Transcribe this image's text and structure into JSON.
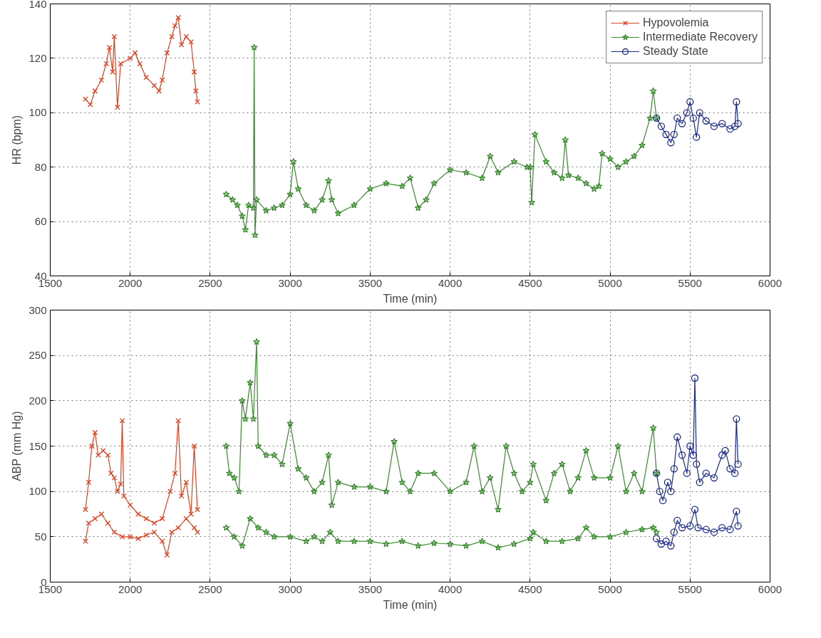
{
  "chart_data": [
    {
      "type": "line",
      "xlabel": "Time (min)",
      "ylabel": "HR (bpm)",
      "xlim": [
        1500,
        6000
      ],
      "xticks": [
        1500,
        2000,
        2500,
        3000,
        3500,
        4000,
        4500,
        5000,
        5500,
        6000
      ],
      "ylim": [
        40,
        140
      ],
      "yticks": [
        40,
        60,
        80,
        100,
        120,
        140
      ],
      "grid": true,
      "legend": "top right",
      "series": [
        {
          "name": "Hypovolemia",
          "color": "#e0401e",
          "marker": "cross",
          "x": [
            1720,
            1750,
            1780,
            1820,
            1850,
            1870,
            1890,
            1900,
            1920,
            1940,
            2000,
            2030,
            2060,
            2100,
            2150,
            2180,
            2200,
            2230,
            2260,
            2280,
            2300,
            2320,
            2350,
            2380,
            2400,
            2410,
            2420
          ],
          "values": [
            105,
            103,
            108,
            112,
            118,
            124,
            115,
            128,
            102,
            118,
            120,
            122,
            118,
            113,
            110,
            108,
            112,
            122,
            128,
            132,
            135,
            125,
            128,
            126,
            115,
            108,
            104
          ]
        },
        {
          "name": "Intermediate Recovery",
          "color": "#3a8a2e",
          "marker": "star",
          "x": [
            2600,
            2640,
            2670,
            2700,
            2720,
            2740,
            2770,
            2775,
            2780,
            2790,
            2850,
            2900,
            2950,
            3000,
            3020,
            3050,
            3100,
            3150,
            3200,
            3240,
            3260,
            3300,
            3400,
            3500,
            3600,
            3700,
            3750,
            3800,
            3850,
            3900,
            4000,
            4100,
            4200,
            4250,
            4300,
            4400,
            4480,
            4500,
            4510,
            4530,
            4600,
            4650,
            4700,
            4720,
            4740,
            4800,
            4850,
            4900,
            4930,
            4950,
            5000,
            5050,
            5100,
            5150,
            5200,
            5250,
            5270,
            5290
          ],
          "values": [
            70,
            68,
            66,
            62,
            57,
            66,
            65,
            124,
            55,
            68,
            64,
            65,
            66,
            70,
            82,
            72,
            66,
            64,
            68,
            75,
            68,
            63,
            66,
            72,
            74,
            73,
            76,
            65,
            68,
            74,
            79,
            78,
            76,
            84,
            78,
            82,
            80,
            80,
            67,
            92,
            82,
            78,
            76,
            90,
            77,
            76,
            74,
            72,
            73,
            85,
            83,
            80,
            82,
            84,
            88,
            98,
            108,
            98
          ]
        },
        {
          "name": "Steady State",
          "color": "#1a2a8c",
          "marker": "circle",
          "x": [
            5290,
            5320,
            5350,
            5380,
            5400,
            5420,
            5450,
            5480,
            5500,
            5520,
            5540,
            5560,
            5600,
            5650,
            5700,
            5750,
            5780,
            5790,
            5800
          ],
          "values": [
            98,
            95,
            92,
            89,
            92,
            98,
            96,
            100,
            104,
            98,
            91,
            100,
            97,
            95,
            96,
            94,
            95,
            104,
            96
          ]
        }
      ]
    },
    {
      "type": "line",
      "xlabel": "Time (min)",
      "ylabel": "ABP (mm Hg)",
      "xlim": [
        1500,
        6000
      ],
      "xticks": [
        1500,
        2000,
        2500,
        3000,
        3500,
        4000,
        4500,
        5000,
        5500,
        6000
      ],
      "ylim": [
        0,
        300
      ],
      "yticks": [
        0,
        50,
        100,
        150,
        200,
        250,
        300
      ],
      "grid": true,
      "series": [
        {
          "color": "#e0401e",
          "marker": "cross",
          "x": [
            1720,
            1740,
            1760,
            1780,
            1800,
            1830,
            1860,
            1880,
            1900,
            1920,
            1940,
            1950,
            1960,
            2000,
            2050,
            2100,
            2150,
            2200,
            2250,
            2280,
            2300,
            2320,
            2350,
            2380,
            2400,
            2420
          ],
          "values": [
            80,
            110,
            150,
            165,
            140,
            145,
            140,
            120,
            115,
            100,
            108,
            178,
            95,
            85,
            75,
            70,
            65,
            70,
            100,
            120,
            178,
            95,
            110,
            75,
            150,
            80
          ]
        },
        {
          "color": "#e0401e",
          "marker": "cross",
          "x": [
            1720,
            1740,
            1780,
            1820,
            1860,
            1900,
            1950,
            2000,
            2050,
            2100,
            2150,
            2200,
            2230,
            2260,
            2300,
            2350,
            2400,
            2420
          ],
          "values": [
            45,
            65,
            70,
            75,
            65,
            55,
            50,
            50,
            48,
            52,
            55,
            45,
            30,
            55,
            60,
            70,
            60,
            55
          ]
        },
        {
          "color": "#3a8a2e",
          "marker": "star",
          "x": [
            2600,
            2620,
            2650,
            2680,
            2700,
            2720,
            2750,
            2770,
            2790,
            2800,
            2850,
            2900,
            2950,
            3000,
            3050,
            3100,
            3150,
            3200,
            3240,
            3260,
            3300,
            3400,
            3500,
            3600,
            3650,
            3700,
            3750,
            3800,
            3900,
            4000,
            4100,
            4150,
            4200,
            4250,
            4300,
            4350,
            4400,
            4450,
            4500,
            4520,
            4600,
            4650,
            4700,
            4750,
            4800,
            4850,
            4900,
            5000,
            5050,
            5100,
            5150,
            5200,
            5270,
            5290
          ],
          "values": [
            150,
            120,
            115,
            100,
            200,
            180,
            220,
            180,
            265,
            150,
            140,
            140,
            130,
            175,
            125,
            115,
            100,
            110,
            140,
            85,
            110,
            105,
            105,
            100,
            155,
            110,
            100,
            120,
            120,
            100,
            110,
            150,
            100,
            115,
            80,
            150,
            120,
            100,
            110,
            130,
            90,
            120,
            130,
            100,
            115,
            145,
            115,
            115,
            150,
            100,
            120,
            100,
            170,
            120
          ]
        },
        {
          "color": "#3a8a2e",
          "marker": "star",
          "x": [
            2600,
            2650,
            2700,
            2750,
            2800,
            2850,
            2900,
            3000,
            3100,
            3150,
            3200,
            3250,
            3300,
            3400,
            3500,
            3600,
            3700,
            3800,
            3900,
            4000,
            4100,
            4200,
            4300,
            4400,
            4500,
            4520,
            4600,
            4700,
            4800,
            4850,
            4900,
            5000,
            5100,
            5200,
            5270,
            5290
          ],
          "values": [
            60,
            50,
            40,
            70,
            60,
            55,
            50,
            50,
            45,
            50,
            45,
            55,
            45,
            45,
            45,
            42,
            45,
            40,
            43,
            42,
            40,
            45,
            38,
            42,
            48,
            55,
            45,
            45,
            48,
            60,
            50,
            50,
            55,
            58,
            60,
            55
          ]
        },
        {
          "color": "#1a2a8c",
          "marker": "circle",
          "x": [
            5290,
            5310,
            5330,
            5360,
            5380,
            5400,
            5420,
            5450,
            5480,
            5500,
            5520,
            5530,
            5540,
            5560,
            5600,
            5650,
            5700,
            5720,
            5750,
            5780,
            5790,
            5800
          ],
          "values": [
            120,
            100,
            90,
            110,
            100,
            125,
            160,
            140,
            120,
            150,
            140,
            225,
            130,
            110,
            120,
            115,
            140,
            145,
            125,
            120,
            180,
            130
          ]
        },
        {
          "color": "#1a2a8c",
          "marker": "circle",
          "x": [
            5290,
            5320,
            5350,
            5380,
            5400,
            5420,
            5450,
            5500,
            5530,
            5550,
            5600,
            5650,
            5700,
            5750,
            5790,
            5800
          ],
          "values": [
            48,
            42,
            45,
            40,
            55,
            68,
            60,
            62,
            80,
            60,
            58,
            55,
            60,
            58,
            78,
            62
          ]
        }
      ]
    }
  ]
}
